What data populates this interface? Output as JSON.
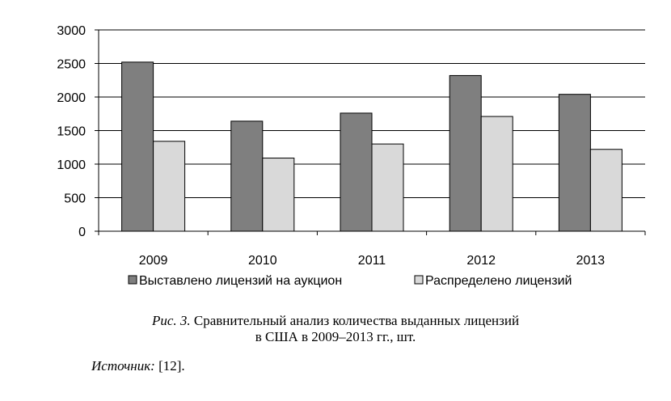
{
  "chart_data": {
    "type": "bar",
    "categories": [
      "2009",
      "2010",
      "2011",
      "2012",
      "2013"
    ],
    "series": [
      {
        "name": "Выставлено лицензий на аукцион",
        "values": [
          2520,
          1640,
          1760,
          2320,
          2040
        ],
        "color": "#7f7f7f"
      },
      {
        "name": "Распределено лицензий",
        "values": [
          1340,
          1090,
          1300,
          1710,
          1220
        ],
        "color": "#d9d9d9"
      }
    ],
    "ylim": [
      0,
      3000
    ],
    "yticks": [
      "0",
      "500",
      "1000",
      "1500",
      "2000",
      "2500",
      "3000"
    ],
    "ytick_values": [
      0,
      500,
      1000,
      1500,
      2000,
      2500,
      3000
    ],
    "grid": true,
    "legend_position": "bottom"
  },
  "caption": {
    "label": "Рис. 3.",
    "line1": "Сравнительный анализ количества выданных лицензий",
    "line2": "в США в 2009–2013 гг., шт."
  },
  "source": {
    "label": "Источник:",
    "text": "[12]."
  }
}
